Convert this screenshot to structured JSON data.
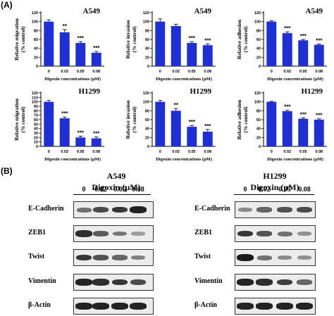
{
  "panel_labels": {
    "a": "(A)",
    "b": "(B)"
  },
  "chart_data": [
    {
      "type": "bar",
      "title": "A549",
      "xlabel": "Digoxin concentrations (μM)",
      "ylabel": "Relative migration\n(% control)",
      "categories": [
        "0",
        "0.02",
        "0.05",
        "0.08"
      ],
      "values": [
        100,
        76,
        52,
        30
      ],
      "errors": [
        4,
        6,
        3,
        3
      ],
      "significance": [
        "",
        "**",
        "***",
        "***"
      ],
      "ylim": [
        0,
        120
      ],
      "yticks": [
        0,
        20,
        40,
        60,
        80,
        100,
        120
      ]
    },
    {
      "type": "bar",
      "title": "A549",
      "xlabel": "Digoxin concentrations (μM)",
      "ylabel": "Relative invasion\n(% control)",
      "categories": [
        "0",
        "0.02",
        "0.05",
        "0.08"
      ],
      "values": [
        100,
        90,
        52,
        47
      ],
      "errors": [
        6,
        4,
        3,
        3
      ],
      "significance": [
        "",
        "",
        "***",
        "***"
      ],
      "ylim": [
        0,
        120
      ],
      "yticks": [
        0,
        20,
        40,
        60,
        80,
        100,
        120
      ]
    },
    {
      "type": "bar",
      "title": "A549",
      "xlabel": "Digoxin concentrations (μM)",
      "ylabel": "Relative adhesion\n(% control)",
      "categories": [
        "0",
        "0.02",
        "0.05",
        "0.08"
      ],
      "values": [
        100,
        74,
        58,
        48
      ],
      "errors": [
        2,
        3,
        2,
        2
      ],
      "significance": [
        "",
        "***",
        "***",
        "***"
      ],
      "ylim": [
        0,
        120
      ],
      "yticks": [
        0,
        20,
        40,
        60,
        80,
        100,
        120
      ]
    },
    {
      "type": "bar",
      "title": "H1299",
      "xlabel": "Digoxin concentrations (μM)",
      "ylabel": "Relative migration\n(% control)",
      "categories": [
        "0",
        "0.02",
        "0.05",
        "0.08"
      ],
      "values": [
        100,
        63,
        20,
        18
      ],
      "errors": [
        3,
        3,
        3,
        3
      ],
      "significance": [
        "",
        "***",
        "***",
        "***"
      ],
      "ylim": [
        0,
        120
      ],
      "yticks": [
        0,
        10,
        20,
        30,
        40,
        50,
        60,
        70,
        80,
        90,
        100,
        110,
        120
      ]
    },
    {
      "type": "bar",
      "title": "H1299",
      "xlabel": "Digoxin concentrations (μM)",
      "ylabel": "Relative invasion\n(% control)",
      "categories": [
        "0",
        "0.02",
        "0.05",
        "0.08"
      ],
      "values": [
        100,
        80,
        44,
        33
      ],
      "errors": [
        3,
        5,
        3,
        5
      ],
      "significance": [
        "",
        "**",
        "***",
        "***"
      ],
      "ylim": [
        0,
        120
      ],
      "yticks": [
        0,
        20,
        40,
        60,
        80,
        100,
        120
      ]
    },
    {
      "type": "bar",
      "title": "H1299",
      "xlabel": "Digoxin concentrations (μM)",
      "ylabel": "Relative adhesion\n(% control)",
      "categories": [
        "0",
        "0.02",
        "0.05",
        "0.08"
      ],
      "values": [
        100,
        79,
        62,
        60
      ],
      "errors": [
        1,
        2,
        2,
        2
      ],
      "significance": [
        "",
        "***",
        "***",
        "***"
      ],
      "ylim": [
        0,
        120
      ],
      "yticks": [
        0,
        20,
        40,
        60,
        80,
        100,
        120
      ]
    }
  ],
  "bar_color": "#1f2fd6",
  "western": {
    "left": {
      "cell_line": "A549",
      "treatment": "Digoxin (μM)",
      "doses": [
        "0",
        "0.02",
        "0.05",
        "0.08"
      ],
      "proteins": [
        "E-Cadherin",
        "ZEB1",
        "Twist",
        "Vimentin",
        "β-Actin"
      ],
      "band_intensity": [
        [
          0.5,
          0.7,
          0.8,
          0.9
        ],
        [
          0.85,
          0.6,
          0.45,
          0.25
        ],
        [
          0.8,
          0.65,
          0.55,
          0.4
        ],
        [
          0.9,
          0.85,
          0.8,
          0.7
        ],
        [
          0.9,
          0.9,
          0.9,
          0.9
        ]
      ]
    },
    "right": {
      "cell_line": "H1299",
      "treatment": "Digoxin (μM)",
      "doses": [
        "0",
        "0.02",
        "0.05",
        "0.08"
      ],
      "proteins": [
        "E-Cadherin",
        "ZEB1",
        "Twist",
        "Vimentin",
        "β-Actin"
      ],
      "band_intensity": [
        [
          0.35,
          0.55,
          0.65,
          0.7
        ],
        [
          0.8,
          0.65,
          0.5,
          0.3
        ],
        [
          0.95,
          0.5,
          0.35,
          0.3
        ],
        [
          0.9,
          0.85,
          0.75,
          0.55
        ],
        [
          0.9,
          0.9,
          0.9,
          0.9
        ]
      ]
    }
  }
}
